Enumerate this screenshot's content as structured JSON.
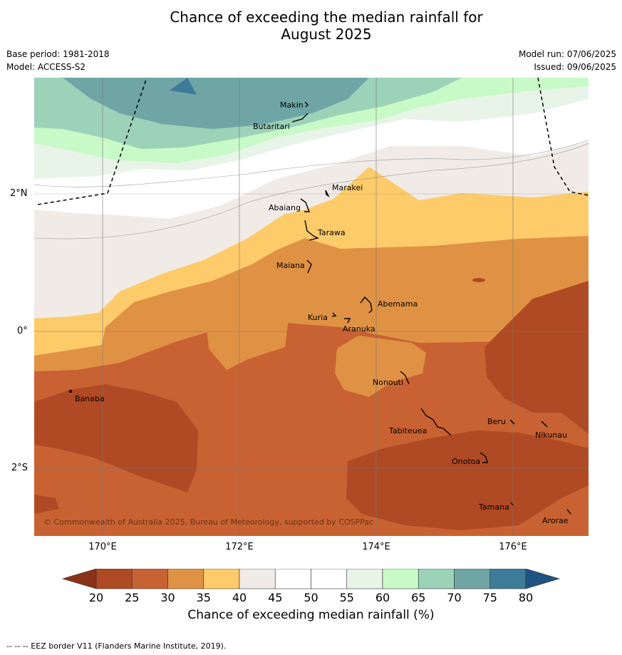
{
  "title": {
    "line1": "Chance of exceeding the median rainfall for",
    "line2": "August 2025"
  },
  "meta": {
    "base_period": "Base period: 1981-2018",
    "model": "Model: ACCESS-S2",
    "model_run": "Model run: 07/06/2025",
    "issued": "Issued: 09/06/2025"
  },
  "map": {
    "lat_labels": [
      "2°N",
      "0°",
      "2°S"
    ],
    "lon_labels": [
      "170°E",
      "172°E",
      "174°E",
      "176°E"
    ],
    "copyright": "© Commonwealth of Australia 2025, Bureau of Meteorology, supported by COSPPac",
    "places": [
      {
        "name": "Makin"
      },
      {
        "name": "Butaritari"
      },
      {
        "name": "Marakei"
      },
      {
        "name": "Abaiang"
      },
      {
        "name": "Tarawa"
      },
      {
        "name": "Maiana"
      },
      {
        "name": "Abemama"
      },
      {
        "name": "Kuria"
      },
      {
        "name": "Aranuka"
      },
      {
        "name": "Banaba"
      },
      {
        "name": "Nonouti"
      },
      {
        "name": "Beru"
      },
      {
        "name": "Tabiteuea"
      },
      {
        "name": "Nikunau"
      },
      {
        "name": "Onotoa"
      },
      {
        "name": "Tamana"
      },
      {
        "name": "Arorae"
      }
    ]
  },
  "colorbar": {
    "ticks": [
      "20",
      "25",
      "30",
      "35",
      "40",
      "45",
      "50",
      "55",
      "60",
      "65",
      "70",
      "75",
      "80"
    ],
    "colors": [
      "#b04a24",
      "#c96232",
      "#e09244",
      "#fecb6a",
      "#f0ebe6",
      "#ffffff",
      "#ffffff",
      "#e8f4e8",
      "#c8fac8",
      "#9cd2b8",
      "#6fa5a5",
      "#3e7b99"
    ],
    "low_extend_color": "#8a3318",
    "high_extend_color": "#1e5482",
    "label": "Chance of exceeding median rainfall (%)"
  },
  "footer": "--  --  -- EEZ border V11 (Flanders Marine Institute, 2019)."
}
